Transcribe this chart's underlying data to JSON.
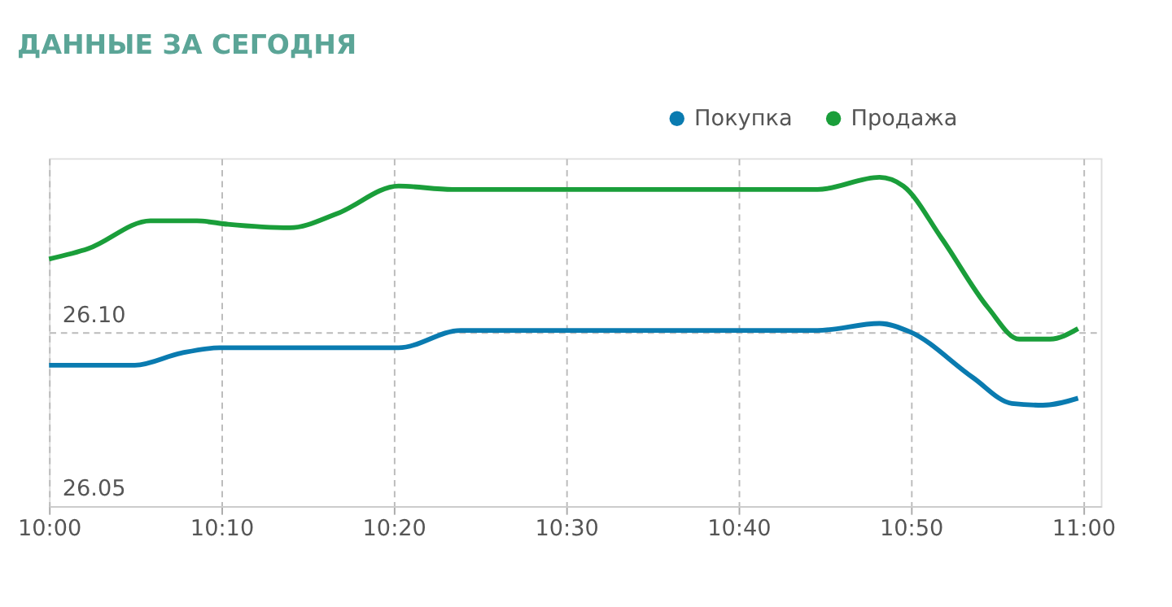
{
  "chart_data": {
    "type": "line",
    "title": "ДАННЫЕ ЗА СЕГОДНЯ",
    "xlim": [
      10.0,
      11.017
    ],
    "xticks": [
      {
        "value": 10.0,
        "label": "10:00"
      },
      {
        "value": 10.1667,
        "label": "10:10"
      },
      {
        "value": 10.3333,
        "label": "10:20"
      },
      {
        "value": 10.5,
        "label": "10:30"
      },
      {
        "value": 10.6667,
        "label": "10:40"
      },
      {
        "value": 10.8333,
        "label": "10:50"
      },
      {
        "value": 11.0,
        "label": "11:00"
      }
    ],
    "ylim": [
      26.05,
      26.15
    ],
    "yticks": [
      {
        "value": 26.05,
        "label": "26.05"
      },
      {
        "value": 26.1,
        "label": "26.10"
      }
    ],
    "grid": true,
    "legend": "top right",
    "marker": "none",
    "line_style": "solid",
    "series": [
      {
        "name": "Покупка",
        "color": "#0a7bb0",
        "x": [
          10.0,
          10.083,
          10.128,
          10.165,
          10.338,
          10.398,
          10.743,
          10.803,
          10.833,
          10.893,
          10.931,
          10.961,
          10.995
        ],
        "values": [
          26.0905,
          26.0905,
          26.094,
          26.0955,
          26.0955,
          26.1005,
          26.1005,
          26.1025,
          26.1,
          26.087,
          26.0795,
          26.079,
          26.081
        ]
      },
      {
        "name": "Продажа",
        "color": "#1a9e3a",
        "x": [
          10.0,
          10.038,
          10.098,
          10.143,
          10.173,
          10.233,
          10.278,
          10.338,
          10.39,
          10.593,
          10.743,
          10.803,
          10.826,
          10.863,
          10.908,
          10.938,
          10.968,
          10.995
        ],
        "values": [
          26.121,
          26.124,
          26.132,
          26.132,
          26.131,
          26.13,
          26.134,
          26.142,
          26.141,
          26.141,
          26.141,
          26.1445,
          26.142,
          26.127,
          26.107,
          26.098,
          26.098,
          26.101
        ]
      }
    ]
  }
}
